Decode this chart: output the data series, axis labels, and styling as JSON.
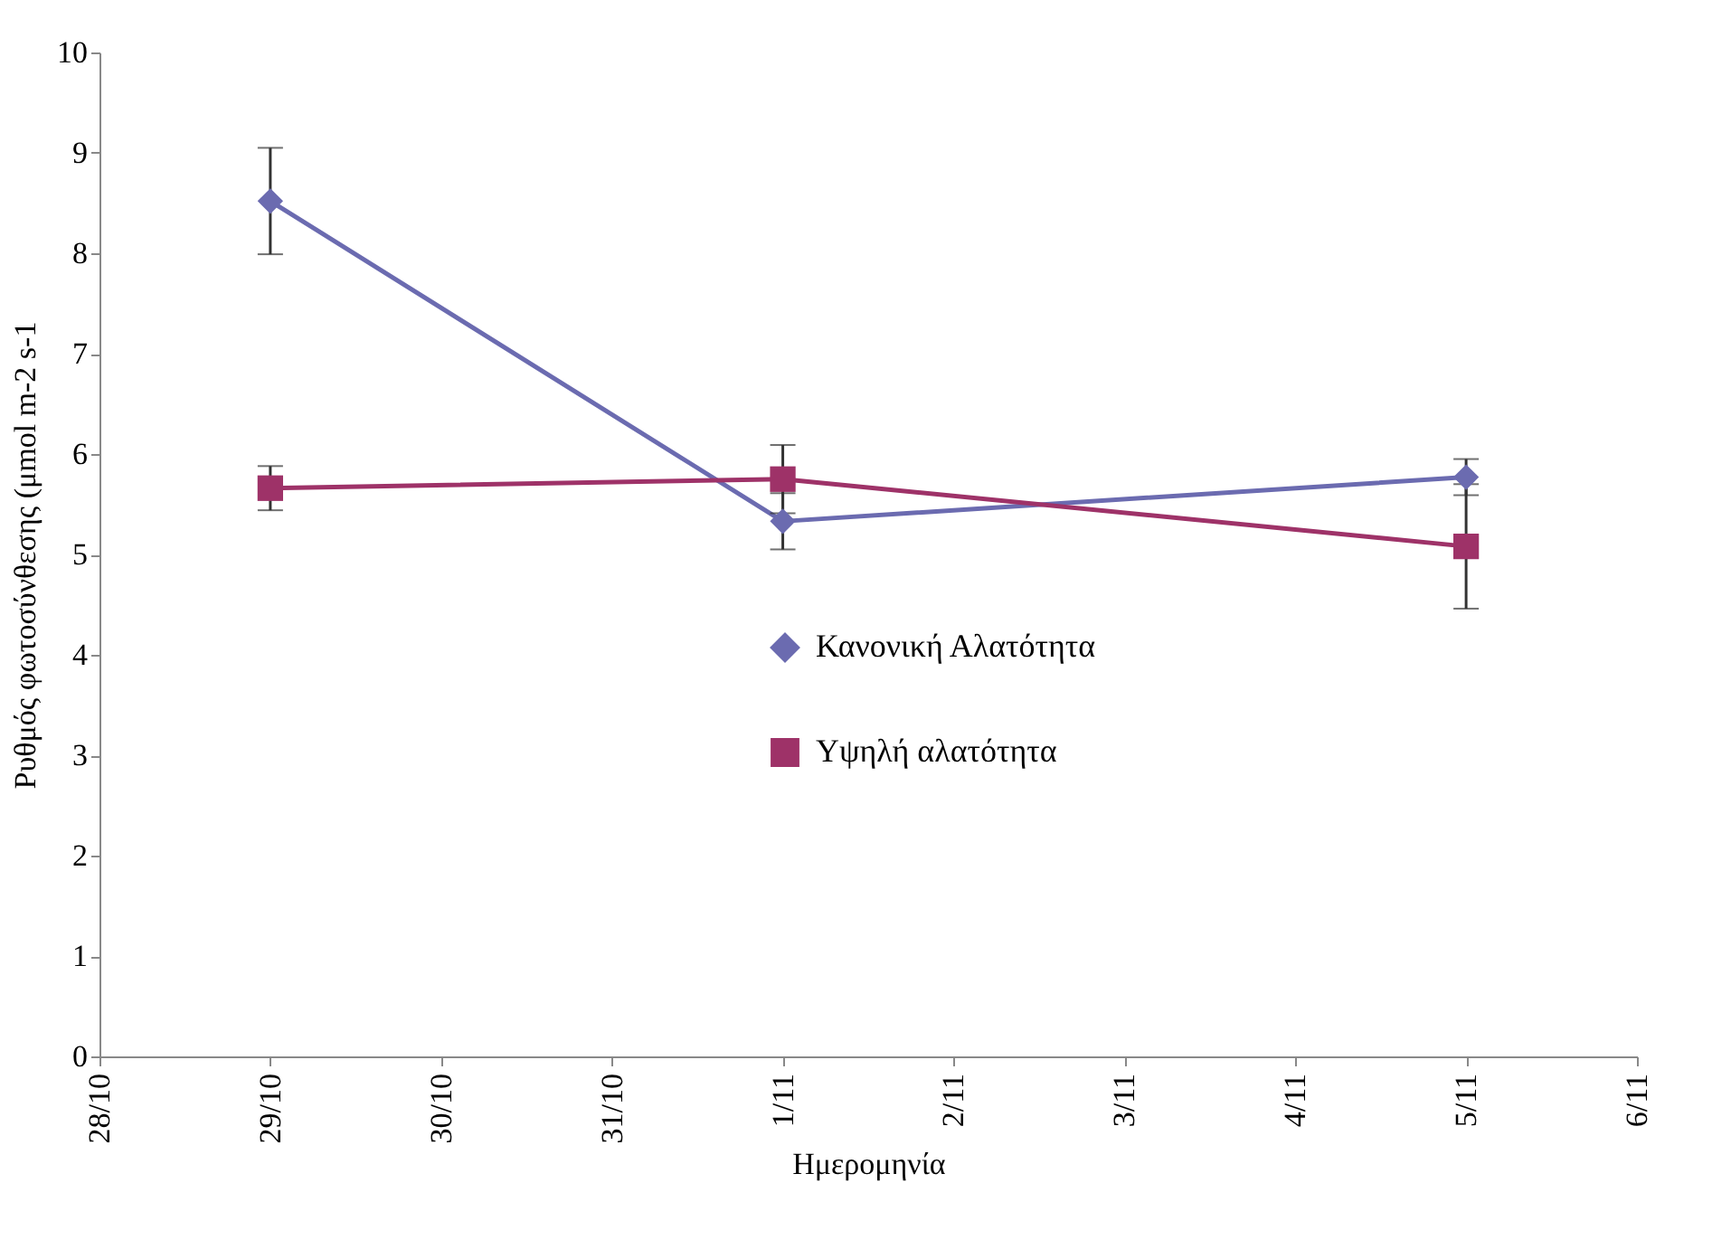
{
  "chart_data": {
    "type": "line",
    "xlabel": "Ημερομηνία",
    "ylabel": "Ρυθμός φωτοσύνθεσης (μmol m-2 s-1",
    "x": [
      "--10-29",
      "--11-01",
      "--11-05"
    ],
    "series": [
      {
        "name": "Κανονική Αλατότητα",
        "color": "#6b6bb0",
        "marker": "diamond",
        "values": [
          8.52,
          5.33,
          5.77
        ],
        "errors": [
          0.53,
          0.28,
          0.18
        ]
      },
      {
        "name": "Υψηλή αλατότητα",
        "color": "#9e3268",
        "marker": "square",
        "values": [
          5.66,
          5.75,
          5.08
        ],
        "errors": [
          0.22,
          0.34,
          0.62
        ]
      }
    ],
    "xlim": [
      "--10-28",
      "--11-06"
    ],
    "xticks": [
      {
        "value": "--10-28",
        "label": "28/10"
      },
      {
        "value": "--10-29",
        "label": "29/10"
      },
      {
        "value": "--10-30",
        "label": "30/10"
      },
      {
        "value": "--10-31",
        "label": "31/10"
      },
      {
        "value": "--11-01",
        "label": "1/11"
      },
      {
        "value": "--11-02",
        "label": "2/11"
      },
      {
        "value": "--11-03",
        "label": "3/11"
      },
      {
        "value": "--11-04",
        "label": "4/11"
      },
      {
        "value": "--11-05",
        "label": "5/11"
      },
      {
        "value": "--11-06",
        "label": "6/11"
      }
    ],
    "ylim": [
      0,
      10
    ],
    "yticks": [
      0,
      1,
      2,
      3,
      4,
      5,
      6,
      7,
      8,
      9,
      10
    ],
    "grid": false,
    "legend": "center",
    "line_style": "solid"
  }
}
